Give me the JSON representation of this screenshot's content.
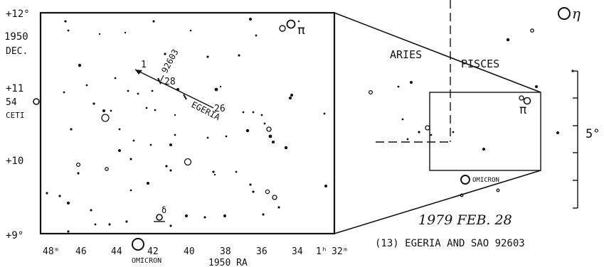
{
  "left_chart": {
    "dec_axis_title": [
      "1950",
      "DEC."
    ],
    "dec_ticks": [
      "+12°",
      "+11",
      "+10",
      "+9°"
    ],
    "ra_ticks": [
      "48ᵐ",
      "46",
      "44",
      "42",
      "40",
      "38",
      "36",
      "34",
      "1ʰ",
      "32ᵐ"
    ],
    "ra_axis_title": "1950  RA",
    "star_54_ceti": [
      "54",
      "CETI"
    ],
    "star_pi": "π",
    "star_delta": "δ",
    "star_omicron": "OMICRON",
    "sao_label": "92603",
    "path_labels": {
      "start": "1",
      "mid": "28",
      "end": "26",
      "name": "EGERIA"
    }
  },
  "right_panel": {
    "constellation_left": "ARIES",
    "constellation_right": "PISCES",
    "star_pi": "π",
    "star_omicron": "OMICRON",
    "star_eta": "η",
    "scale_label": "5°"
  },
  "caption": {
    "date": "1979 FEB. 28",
    "title": "(13) EGERIA AND SAO 92603"
  }
}
